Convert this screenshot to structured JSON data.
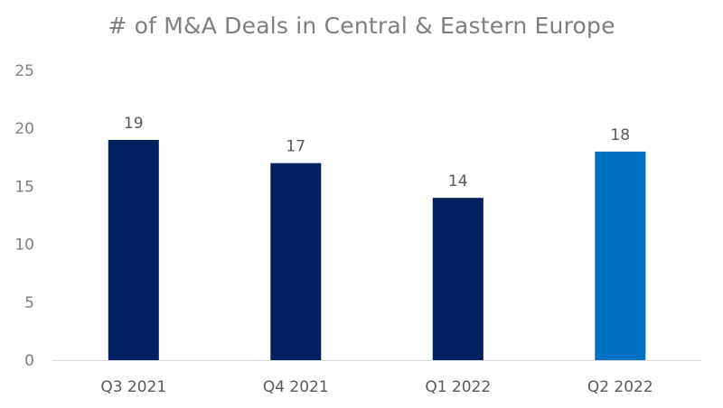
{
  "chart_data": {
    "type": "bar",
    "title": "# of M&A Deals in Central & Eastern Europe",
    "xlabel": "",
    "ylabel": "",
    "categories": [
      "Q3 2021",
      "Q4 2021",
      "Q1 2022",
      "Q2 2022"
    ],
    "values": [
      19,
      17,
      14,
      18
    ],
    "data_labels": [
      "19",
      "17",
      "14",
      "18"
    ],
    "ylim": [
      0,
      25
    ],
    "yticks": [
      0,
      5,
      10,
      15,
      20,
      25
    ],
    "grid": false,
    "legend": "none",
    "bar_colors": [
      "#002060",
      "#002060",
      "#002060",
      "#0070C0"
    ]
  }
}
